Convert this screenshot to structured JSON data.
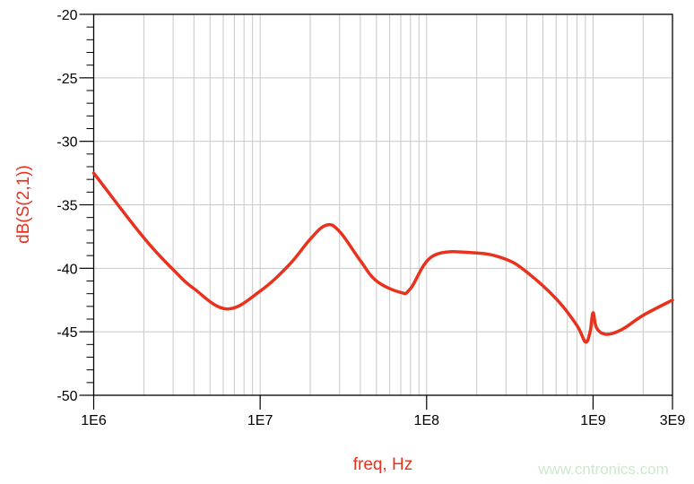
{
  "chart_data": {
    "type": "line",
    "title": "",
    "xlabel": "freq, Hz",
    "ylabel": "dB(S(2,1))",
    "xscale": "log",
    "xlim": [
      1000000,
      3000000000
    ],
    "ylim": [
      -50,
      -20
    ],
    "grid": true,
    "x_tick_labels": [
      {
        "value": 1000000,
        "label": "1E6"
      },
      {
        "value": 10000000,
        "label": "1E7"
      },
      {
        "value": 100000000,
        "label": "1E8"
      },
      {
        "value": 1000000000,
        "label": "1E9"
      },
      {
        "value": 3000000000,
        "label": "3E9"
      }
    ],
    "y_ticks": [
      -20,
      -25,
      -30,
      -35,
      -40,
      -45,
      -50
    ],
    "series": [
      {
        "color": "#e8321e",
        "x": [
          1000000.0,
          2000000.0,
          3000000.0,
          4000000.0,
          6300000.0,
          10000000.0,
          15000000.0,
          20000000.0,
          25000000.0,
          30000000.0,
          40000000.0,
          50000000.0,
          70000000.0,
          80000000.0,
          110000000.0,
          200000000.0,
          300000000.0,
          400000000.0,
          600000000.0,
          800000000.0,
          900000000.0,
          960000000.0,
          1000000000.0,
          1050000000.0,
          1200000000.0,
          1500000000.0,
          2000000000.0,
          3000000000.0
        ],
        "y": [
          -32.5,
          -37.6,
          -40.1,
          -41.6,
          -43.2,
          -41.8,
          -39.7,
          -37.7,
          -36.6,
          -37.1,
          -39.4,
          -41.0,
          -41.9,
          -41.6,
          -39.0,
          -38.8,
          -39.3,
          -40.3,
          -42.4,
          -44.5,
          -45.8,
          -45.0,
          -43.5,
          -44.7,
          -45.2,
          -44.8,
          -43.7,
          -42.5
        ]
      }
    ]
  },
  "colors": {
    "curve": "#e8321e",
    "axis_label": "#e8321e",
    "grid": "#c8c8c8",
    "watermark": "#cde8cd"
  },
  "watermark": "www.cntronics.com"
}
